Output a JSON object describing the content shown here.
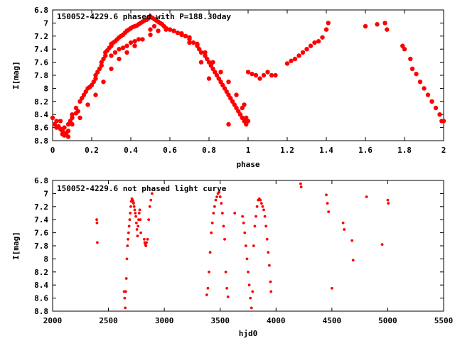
{
  "chart_data": [
    {
      "type": "scatter",
      "title": "150052-4229.6 phased with P=188.30day",
      "xlabel": "phase",
      "ylabel": "I[mag]",
      "xlim": [
        0,
        2
      ],
      "ylim": [
        8.8,
        6.8
      ],
      "y_inverted": true,
      "grid": false,
      "legend": "none",
      "marker_color": "#ff0000",
      "marker": "filled-circle",
      "x_ticks": [
        "0",
        "0.2",
        "0.4",
        "0.6",
        "0.8",
        "1",
        "1.2",
        "1.4",
        "1.6",
        "1.8",
        "2"
      ],
      "x_tick_values": [
        0,
        0.2,
        0.4,
        0.6,
        0.8,
        1.0,
        1.2,
        1.4,
        1.6,
        1.8,
        2.0
      ],
      "y_ticks": [
        "6.8",
        "7",
        "7.2",
        "7.4",
        "7.6",
        "7.8",
        "8",
        "8.2",
        "8.4",
        "8.6",
        "8.8"
      ],
      "y_tick_values": [
        6.8,
        7.0,
        7.2,
        7.4,
        7.6,
        7.8,
        8.0,
        8.2,
        8.4,
        8.6,
        8.8
      ],
      "series": [
        {
          "x": [
            0.0,
            0.01,
            0.02,
            0.02,
            0.03,
            0.04,
            0.05,
            0.05,
            0.06,
            0.07,
            0.08,
            0.08,
            0.09,
            0.1,
            0.1,
            0.12,
            0.12,
            0.13,
            0.14,
            0.15,
            0.16,
            0.17,
            0.18,
            0.19,
            0.2,
            0.21,
            0.22,
            0.22,
            0.23,
            0.24,
            0.25,
            0.25,
            0.26,
            0.27,
            0.27,
            0.28,
            0.29,
            0.3,
            0.3,
            0.31,
            0.32,
            0.33,
            0.34,
            0.35,
            0.36,
            0.37,
            0.38,
            0.39,
            0.4,
            0.41,
            0.42,
            0.43,
            0.44,
            0.45,
            0.46,
            0.47,
            0.48,
            0.49,
            0.5,
            0.51,
            0.52,
            0.53,
            0.54,
            0.55,
            0.56,
            0.57,
            0.58,
            0.6,
            0.62,
            0.64,
            0.66,
            0.68,
            0.7,
            0.72,
            0.74,
            0.75,
            0.76,
            0.78,
            0.79,
            0.8,
            0.81,
            0.82,
            0.83,
            0.84,
            0.85,
            0.86,
            0.87,
            0.88,
            0.89,
            0.9,
            0.91,
            0.92,
            0.93,
            0.94,
            0.95,
            0.96,
            0.97,
            0.98,
            0.99,
            1.0,
            0.04,
            0.06,
            0.08,
            0.1,
            0.14,
            0.18,
            0.22,
            0.26,
            0.3,
            0.34,
            0.38,
            0.42,
            0.46,
            0.5,
            0.54,
            0.58,
            0.62,
            0.66,
            0.7,
            0.74,
            0.78,
            0.82,
            0.86,
            0.9,
            0.94,
            0.97,
            0.99,
            0.3,
            0.32,
            0.34,
            0.36,
            0.38,
            0.4,
            0.42,
            0.44,
            0.5,
            0.52,
            0.6,
            0.7,
            0.76,
            0.8,
            0.9,
            0.98,
            1.0,
            1.02,
            1.04,
            1.06,
            1.08,
            1.1,
            1.12,
            1.14,
            1.2,
            1.22,
            1.24,
            1.26,
            1.28,
            1.3,
            1.32,
            1.34,
            1.36,
            1.38,
            1.4,
            1.41,
            1.6,
            1.66,
            1.7,
            1.71,
            1.79,
            1.8,
            1.83,
            1.84,
            1.86,
            1.88,
            1.9,
            1.92,
            1.94,
            1.96,
            1.98,
            1.99,
            2.0
          ],
          "y": [
            8.45,
            8.55,
            8.6,
            8.5,
            8.58,
            8.62,
            8.65,
            8.7,
            8.72,
            8.68,
            8.74,
            8.55,
            8.5,
            8.4,
            8.45,
            8.38,
            8.3,
            8.35,
            8.2,
            8.15,
            8.1,
            8.05,
            8.0,
            7.98,
            7.95,
            7.9,
            7.85,
            7.8,
            7.75,
            7.7,
            7.65,
            7.6,
            7.55,
            7.5,
            7.45,
            7.42,
            7.38,
            7.35,
            7.32,
            7.3,
            7.28,
            7.25,
            7.22,
            7.2,
            7.18,
            7.15,
            7.12,
            7.1,
            7.08,
            7.06,
            7.05,
            7.04,
            7.02,
            7.0,
            6.98,
            6.96,
            6.95,
            6.93,
            6.9,
            6.92,
            6.94,
            6.96,
            6.98,
            7.0,
            7.02,
            7.05,
            7.08,
            7.1,
            7.12,
            7.15,
            7.18,
            7.2,
            7.25,
            7.3,
            7.35,
            7.4,
            7.45,
            7.5,
            7.55,
            7.6,
            7.65,
            7.7,
            7.75,
            7.8,
            7.85,
            7.9,
            7.95,
            8.0,
            8.05,
            8.1,
            8.15,
            8.2,
            8.25,
            8.3,
            8.35,
            8.4,
            8.45,
            8.5,
            8.55,
            8.5,
            8.5,
            8.6,
            8.65,
            8.55,
            8.45,
            8.25,
            8.1,
            7.9,
            7.7,
            7.55,
            7.45,
            7.35,
            7.25,
            7.18,
            7.12,
            7.1,
            7.12,
            7.16,
            7.22,
            7.32,
            7.45,
            7.6,
            7.75,
            7.9,
            8.1,
            8.3,
            8.45,
            7.5,
            7.45,
            7.4,
            7.38,
            7.35,
            7.3,
            7.28,
            7.25,
            7.1,
            7.05,
            7.1,
            7.3,
            7.6,
            7.85,
            8.55,
            8.25,
            7.75,
            7.78,
            7.8,
            7.85,
            7.8,
            7.75,
            7.8,
            7.8,
            7.62,
            7.58,
            7.55,
            7.5,
            7.45,
            7.4,
            7.35,
            7.3,
            7.28,
            7.22,
            7.1,
            7.0,
            7.05,
            7.02,
            7.0,
            7.1,
            7.35,
            7.4,
            7.55,
            7.7,
            7.78,
            7.9,
            8.0,
            8.1,
            8.2,
            8.3,
            8.4,
            8.5,
            8.5
          ]
        }
      ]
    },
    {
      "type": "scatter",
      "title": "150052-4229.6 not phased light curve",
      "xlabel": "hjd0",
      "ylabel": "I[mag]",
      "xlim": [
        2000,
        5500
      ],
      "ylim": [
        8.8,
        6.8
      ],
      "y_inverted": true,
      "grid": false,
      "legend": "none",
      "marker_color": "#ff0000",
      "marker": "small-filled-circle",
      "x_ticks": [
        "2000",
        "2500",
        "3000",
        "3500",
        "4000",
        "4500",
        "5000",
        "5500"
      ],
      "x_tick_values": [
        2000,
        2500,
        3000,
        3500,
        4000,
        4500,
        5000,
        5500
      ],
      "y_ticks": [
        "6.8",
        "7",
        "7.2",
        "7.4",
        "7.6",
        "7.8",
        "8",
        "8.2",
        "8.4",
        "8.6",
        "8.8"
      ],
      "y_tick_values": [
        6.8,
        7.0,
        7.2,
        7.4,
        7.6,
        7.8,
        8.0,
        8.2,
        8.4,
        8.6,
        8.8
      ],
      "series": [
        {
          "x": [
            2395,
            2397,
            2400,
            2640,
            2645,
            2650,
            2655,
            2660,
            2665,
            2670,
            2675,
            2680,
            2685,
            2690,
            2695,
            2700,
            2705,
            2710,
            2715,
            2720,
            2725,
            2730,
            2735,
            2740,
            2745,
            2750,
            2755,
            2760,
            2765,
            2770,
            2775,
            2780,
            2785,
            2790,
            2820,
            2825,
            2830,
            2835,
            2840,
            2850,
            2860,
            2870,
            2880,
            2890,
            3380,
            3390,
            3400,
            3410,
            3420,
            3430,
            3440,
            3450,
            3460,
            3470,
            3480,
            3490,
            3500,
            3510,
            3520,
            3530,
            3540,
            3550,
            3560,
            3570,
            3630,
            3700,
            3710,
            3720,
            3730,
            3740,
            3750,
            3760,
            3770,
            3780,
            3790,
            3800,
            3810,
            3820,
            3830,
            3840,
            3850,
            3860,
            3870,
            3880,
            3890,
            3900,
            3910,
            3920,
            3930,
            3940,
            3950,
            3955,
            4220,
            4225,
            4450,
            4460,
            4470,
            4500,
            4600,
            4610,
            4680,
            4690,
            4810,
            4950,
            5000,
            5005
          ],
          "y": [
            7.4,
            7.45,
            7.75,
            8.5,
            8.6,
            8.75,
            8.5,
            8.3,
            8.0,
            7.8,
            7.7,
            7.6,
            7.5,
            7.4,
            7.3,
            7.2,
            7.12,
            7.08,
            7.1,
            7.12,
            7.15,
            7.2,
            7.25,
            7.3,
            7.35,
            7.45,
            7.55,
            7.65,
            7.5,
            7.4,
            7.3,
            7.25,
            7.4,
            7.6,
            7.7,
            7.75,
            7.78,
            7.8,
            7.75,
            7.7,
            7.4,
            7.2,
            7.1,
            7.0,
            8.55,
            8.45,
            8.2,
            7.9,
            7.6,
            7.45,
            7.3,
            7.2,
            7.1,
            7.05,
            7.0,
            6.98,
            7.05,
            7.15,
            7.3,
            7.5,
            7.7,
            8.2,
            8.45,
            8.58,
            7.3,
            7.35,
            7.45,
            7.6,
            7.8,
            8.0,
            8.2,
            8.4,
            8.6,
            8.75,
            8.5,
            7.8,
            7.5,
            7.35,
            7.2,
            7.1,
            7.08,
            7.1,
            7.15,
            7.2,
            7.25,
            7.35,
            7.5,
            7.7,
            7.9,
            8.1,
            8.35,
            8.5,
            6.85,
            6.9,
            7.02,
            7.15,
            7.28,
            8.45,
            7.45,
            7.55,
            7.72,
            8.02,
            7.05,
            7.78,
            7.1,
            7.15
          ]
        }
      ]
    }
  ]
}
